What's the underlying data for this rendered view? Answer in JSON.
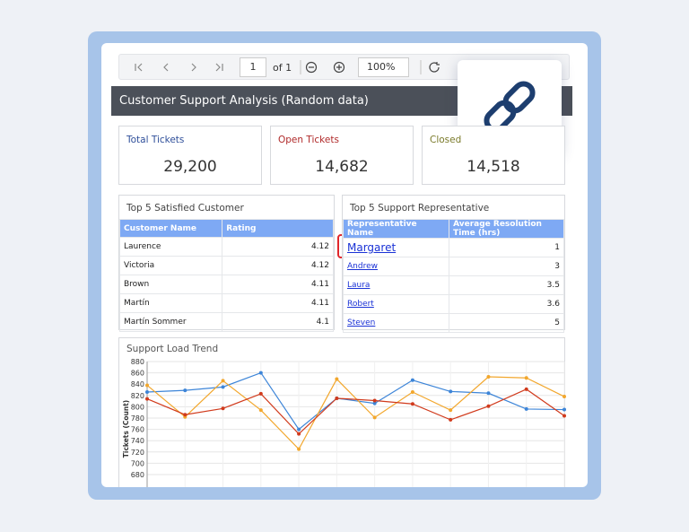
{
  "toolbar": {
    "page": "1",
    "of": "of 1",
    "zoom": "100%"
  },
  "header": {
    "title": "Customer Support Analysis (Random data)"
  },
  "kpis": [
    {
      "label": "Total Tickets",
      "value": "29,200",
      "color": "#2f4f9a"
    },
    {
      "label": "Open Tickets",
      "value": "14,682",
      "color": "#b02a2a"
    },
    {
      "label": "Closed",
      "value": "14,518",
      "color": "#7a7a2a"
    }
  ],
  "tables": [
    {
      "title": "Top 5 Satisfied Customer",
      "columns": [
        "Customer Name",
        "Rating"
      ],
      "rows": [
        [
          "Laurence",
          "4.12"
        ],
        [
          "Victoria",
          "4.12"
        ],
        [
          "Brown",
          "4.11"
        ],
        [
          "Martín",
          "4.11"
        ],
        [
          "Martín Sommer",
          "4.1"
        ]
      ]
    },
    {
      "title": "Top 5 Support Representative",
      "columns": [
        "Representative Name",
        "Average Resolution Time (hrs)"
      ],
      "rows": [
        [
          "Margaret",
          "1"
        ],
        [
          "Andrew",
          "3"
        ],
        [
          "Laura",
          "3.5"
        ],
        [
          "Robert",
          "3.6"
        ],
        [
          "Steven",
          "5"
        ]
      ]
    }
  ],
  "chart_data": {
    "type": "line",
    "title": "Support Load Trend",
    "y_label": "Tickets (Count)",
    "categories": [
      null,
      null,
      null,
      null,
      null,
      null,
      null,
      null,
      null,
      null,
      null,
      null
    ],
    "series": [
      {
        "color": "#3d85d8",
        "values": [
          826,
          829,
          835,
          860,
          760,
          815,
          806,
          847,
          827,
          824,
          796,
          795
        ]
      },
      {
        "color": "#f2a72d",
        "values": [
          838,
          782,
          846,
          794,
          725,
          849,
          781,
          826,
          794,
          853,
          851,
          818
        ]
      },
      {
        "color": "#d13b1d",
        "values": [
          814,
          786,
          797,
          823,
          752,
          815,
          811,
          805,
          777,
          801,
          831,
          784
        ]
      }
    ],
    "ylim": [
      680,
      880
    ],
    "yticks": [
      680,
      700,
      720,
      740,
      760,
      780,
      800,
      820,
      840,
      860,
      880
    ],
    "grid": true
  }
}
